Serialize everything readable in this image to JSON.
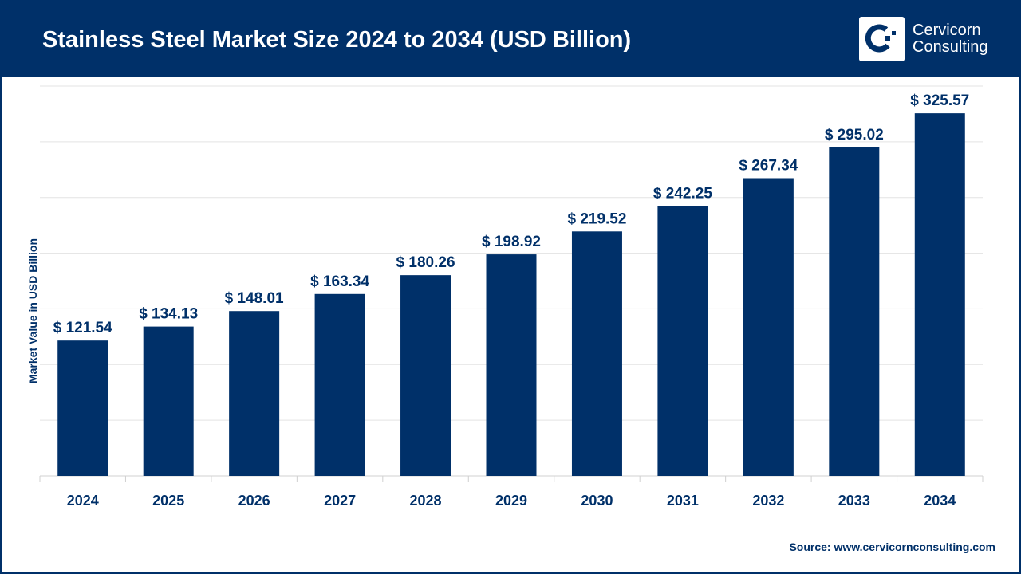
{
  "header": {
    "title": "Stainless Steel Market Size 2024 to 2034 (USD Billion)",
    "logo_line1": "Cervicorn",
    "logo_line2": "Consulting"
  },
  "source": "Source: www.cervicornconsulting.com",
  "colors": {
    "bar": "#003069",
    "header": "#003069",
    "grid": "#e3e3e3"
  },
  "chart_data": {
    "type": "bar",
    "title": "Stainless Steel Market Size 2024 to 2034 (USD Billion)",
    "xlabel": "",
    "ylabel": "Market Value in USD Billion",
    "categories": [
      "2024",
      "2025",
      "2026",
      "2027",
      "2028",
      "2029",
      "2030",
      "2031",
      "2032",
      "2033",
      "2034"
    ],
    "values": [
      121.54,
      134.13,
      148.01,
      163.34,
      180.26,
      198.92,
      219.52,
      242.25,
      267.34,
      295.02,
      325.57
    ],
    "data_labels": [
      "$ 121.54",
      "$ 134.13",
      "$ 148.01",
      "$ 163.34",
      "$ 180.26",
      "$ 198.92",
      "$ 219.52",
      "$ 242.25",
      "$ 267.34",
      "$ 295.02",
      "$ 325.57"
    ],
    "ylim": [
      0,
      350
    ],
    "grid": true,
    "y_ticks_shown": false
  }
}
